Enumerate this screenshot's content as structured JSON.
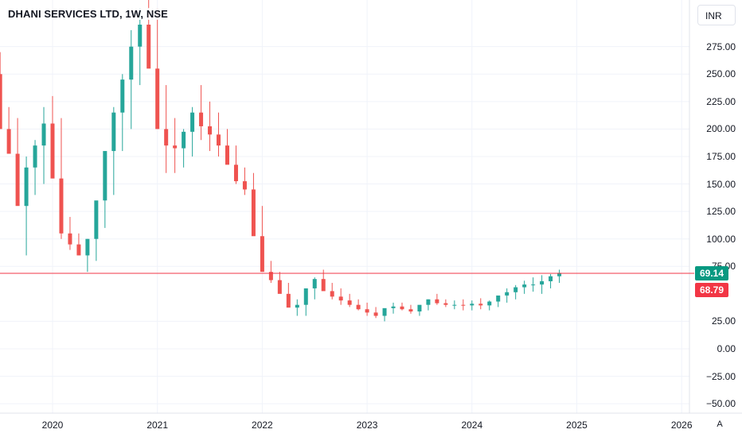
{
  "header": {
    "title": "DHANI SERVICES LTD, 1W, NSE",
    "currency": "INR"
  },
  "price_axis": {
    "ticks": [
      "275.00",
      "250.00",
      "225.00",
      "200.00",
      "175.00",
      "150.00",
      "125.00",
      "100.00",
      "75.00",
      "25.00",
      "0.00",
      "−25.00",
      "−50.00"
    ],
    "current_price": "69.14",
    "prev_close": "68.79",
    "current_color": "#089981",
    "prev_color": "#f23645"
  },
  "time_axis": {
    "ticks": [
      "2020",
      "2021",
      "2022",
      "2023",
      "2024",
      "2025",
      "2026"
    ],
    "auto_label": "A"
  },
  "colors": {
    "up": "#26a69a",
    "down": "#ef5350",
    "price_line": "#f23645",
    "grid": "#f0f3fa",
    "axis_text": "#131722"
  },
  "chart_data": {
    "type": "candlestick",
    "title": "DHANI SERVICES LTD, 1W, NSE",
    "currency": "INR",
    "interval": "1W",
    "y_range": [
      -55,
      300
    ],
    "x_range": [
      "2019-06",
      "2026-06"
    ],
    "last_price": 69.14,
    "previous_close": 68.79,
    "series": [
      {
        "name": "",
        "values": [
          [
            "2019-06",
            260,
            285
          ],
          [
            "2019-07",
            230,
            270
          ],
          [
            "2019-08",
            180,
            220
          ],
          [
            "2019-09",
            145,
            210
          ],
          [
            "2019-10",
            85,
            175
          ],
          [
            "2019-11",
            140,
            190
          ],
          [
            "2019-12",
            150,
            220
          ],
          [
            "2020-01",
            180,
            230
          ],
          [
            "2020-02",
            100,
            210
          ],
          [
            "2020-03",
            90,
            120
          ],
          [
            "2020-04",
            85,
            105
          ],
          [
            "2020-05",
            70,
            100
          ],
          [
            "2020-06",
            80,
            120
          ],
          [
            "2020-07",
            110,
            160
          ],
          [
            "2020-08",
            140,
            220
          ],
          [
            "2020-09",
            180,
            250
          ],
          [
            "2020-10",
            200,
            290
          ],
          [
            "2020-11",
            240,
            310
          ],
          [
            "2020-12",
            270,
            320
          ],
          [
            "2021-01",
            200,
            310
          ],
          [
            "2021-02",
            160,
            240
          ],
          [
            "2021-03",
            160,
            210
          ],
          [
            "2021-04",
            165,
            200
          ],
          [
            "2021-05",
            175,
            220
          ],
          [
            "2021-06",
            190,
            240
          ],
          [
            "2021-07",
            180,
            225
          ],
          [
            "2021-08",
            175,
            215
          ],
          [
            "2021-09",
            170,
            200
          ],
          [
            "2021-10",
            150,
            185
          ],
          [
            "2021-11",
            140,
            165
          ],
          [
            "2021-12",
            130,
            160
          ],
          [
            "2022-01",
            75,
            130
          ],
          [
            "2022-02",
            60,
            80
          ],
          [
            "2022-03",
            55,
            70
          ],
          [
            "2022-04",
            40,
            60
          ],
          [
            "2022-05",
            30,
            45
          ],
          [
            "2022-06",
            30,
            50
          ],
          [
            "2022-07",
            45,
            65
          ],
          [
            "2022-08",
            55,
            72
          ],
          [
            "2022-09",
            45,
            60
          ],
          [
            "2022-10",
            40,
            55
          ],
          [
            "2022-11",
            38,
            50
          ],
          [
            "2022-12",
            35,
            45
          ],
          [
            "2023-01",
            30,
            42
          ],
          [
            "2023-02",
            28,
            38
          ],
          [
            "2023-03",
            25,
            35
          ],
          [
            "2023-04",
            32,
            42
          ],
          [
            "2023-05",
            35,
            42
          ],
          [
            "2023-06",
            32,
            40
          ],
          [
            "2023-07",
            30,
            38
          ],
          [
            "2023-08",
            35,
            45
          ],
          [
            "2023-09",
            40,
            50
          ],
          [
            "2023-10",
            38,
            45
          ],
          [
            "2023-11",
            36,
            44
          ],
          [
            "2023-12",
            35,
            45
          ],
          [
            "2024-01",
            35,
            44
          ],
          [
            "2024-02",
            36,
            46
          ],
          [
            "2024-03",
            35,
            44
          ],
          [
            "2024-04",
            38,
            48
          ],
          [
            "2024-05",
            42,
            55
          ],
          [
            "2024-06",
            45,
            58
          ],
          [
            "2024-07",
            50,
            62
          ],
          [
            "2024-08",
            52,
            65
          ],
          [
            "2024-09",
            50,
            67
          ],
          [
            "2024-10",
            55,
            68
          ],
          [
            "2024-11",
            60,
            72
          ]
        ]
      }
    ]
  }
}
